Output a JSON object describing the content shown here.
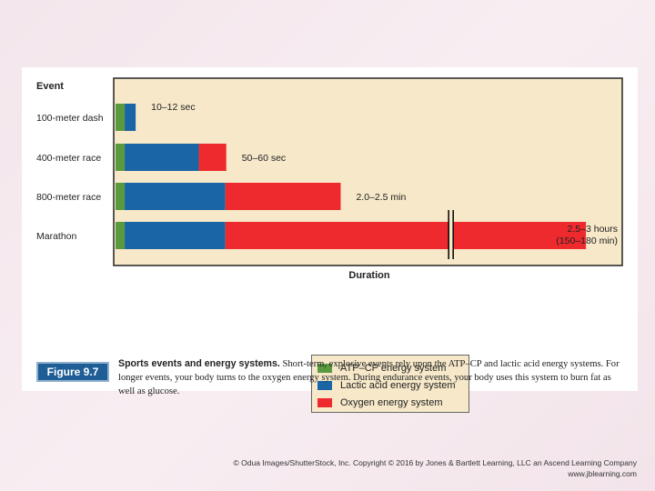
{
  "figure": {
    "badge": "Figure 9.7",
    "caption_title": "Sports events and energy systems.",
    "caption_body": "Short-term, explosive events rely upon the ATP–CP and lactic acid energy systems. For longer events, your body turns to the oxygen energy system. During endurance events, your body uses this system to burn fat as well as glucose."
  },
  "credit": {
    "line1": "© Odua Images/ShutterStock, Inc. Copyright © 2016 by Jones & Bartlett Learning, LLC an Ascend Learning Company",
    "line2": "www.jblearning.com"
  },
  "colors": {
    "atp": "#5a9a3e",
    "lactic": "#1a65a6",
    "oxygen": "#ee2a2e",
    "plot_bg": "#f6e8c9"
  },
  "chart_data": {
    "type": "bar",
    "orientation": "horizontal",
    "stacked": true,
    "ylabel": "Event",
    "xlabel": "Duration",
    "axis_break": true,
    "categories": [
      "100-meter dash",
      "400-meter race",
      "800-meter race",
      "Marathon"
    ],
    "duration_labels": [
      "10–12 sec",
      "50–60 sec",
      "2.0–2.5 min",
      "2.5–3 hours\n(150–180 min)"
    ],
    "series": [
      {
        "name": "ATP–CP energy system",
        "color": "#5a9a3e",
        "values": [
          1,
          1,
          1,
          1
        ]
      },
      {
        "name": "Lactic acid energy system",
        "color": "#1a65a6",
        "values": [
          1.2,
          8.1,
          11,
          11
        ]
      },
      {
        "name": "Oxygen energy system",
        "color": "#ee2a2e",
        "values": [
          0,
          3,
          12.6,
          39.4
        ]
      }
    ],
    "xlim": [
      0,
      52
    ],
    "legend_position": "bottom-center"
  }
}
